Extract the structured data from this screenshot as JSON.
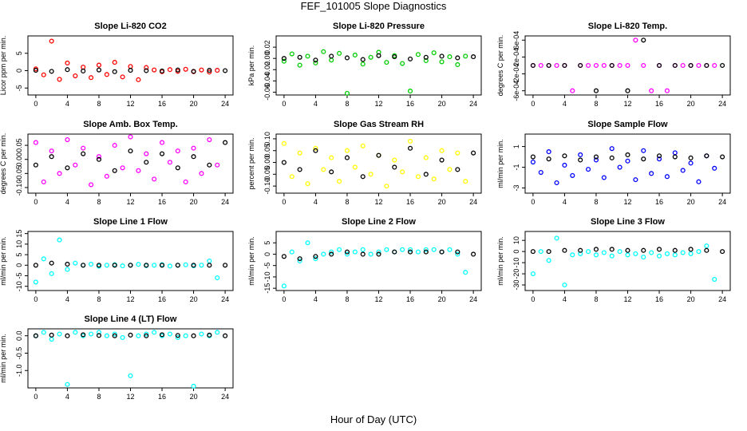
{
  "title": "FEF_101005  Slope Diagnostics",
  "xlabel": "Hour of Day (UTC)",
  "chart_data": [
    {
      "type": "scatter",
      "title": "Slope Li-820 CO2",
      "ylabel": "Licor ppm per min.",
      "xlim": [
        -1,
        25
      ],
      "xticks": [
        0,
        4,
        8,
        12,
        16,
        20,
        24
      ],
      "ylim": [
        -7,
        10
      ],
      "yticks": [
        -5,
        0,
        5
      ],
      "series": [
        {
          "color": "#ff0000",
          "x": [
            0,
            1,
            2,
            3,
            4,
            5,
            6,
            7,
            8,
            9,
            10,
            11,
            12,
            13,
            14,
            15,
            16,
            17,
            18,
            19,
            20,
            21,
            22,
            23
          ],
          "values": [
            0.5,
            -1.2,
            8.5,
            -2.5,
            2.2,
            -1.5,
            1.0,
            -2.0,
            1.6,
            -1.1,
            2.4,
            -1.8,
            1.2,
            -2.6,
            0.9,
            0.2,
            -0.3,
            0.3,
            -0.2,
            0.4,
            -0.3,
            0.2,
            -0.4,
            0.1
          ]
        },
        {
          "color": "#000000",
          "x": [
            0,
            2,
            4,
            6,
            8,
            10,
            12,
            14,
            16,
            18,
            20,
            22,
            24
          ],
          "values": [
            0.1,
            -0.2,
            0.3,
            -0.1,
            0.2,
            -0.3,
            0.1,
            0,
            -0.1,
            0.2,
            -0.2,
            0.1,
            0
          ]
        }
      ]
    },
    {
      "type": "scatter",
      "title": "Slope Li-820 Pressure",
      "ylabel": "kPa per min.",
      "xlim": [
        -1,
        25
      ],
      "xticks": [
        0,
        4,
        8,
        12,
        16,
        20,
        24
      ],
      "ylim": [
        -0.065,
        0.04
      ],
      "yticks": [
        -0.06,
        -0.04,
        -0.02,
        {
          "value": 0,
          "label": "0.00"
        },
        0.02
      ],
      "series": [
        {
          "color": "#00cd00",
          "x": [
            0,
            1,
            2,
            3,
            4,
            5,
            6,
            7,
            8,
            9,
            10,
            11,
            12,
            13,
            14,
            15,
            16,
            17,
            18,
            19,
            20,
            21,
            22,
            23
          ],
          "values": [
            -0.005,
            0.008,
            -0.012,
            0.004,
            -0.008,
            0.012,
            -0.003,
            0.009,
            -0.062,
            0.006,
            -0.01,
            0.002,
            0.011,
            -0.007,
            0.005,
            -0.009,
            -0.058,
            0.007,
            -0.004,
            0.01,
            -0.006,
            0.003,
            -0.011,
            0.004
          ]
        },
        {
          "color": "#000000",
          "x": [
            0,
            2,
            4,
            6,
            8,
            10,
            12,
            14,
            16,
            18,
            20,
            22,
            24
          ],
          "values": [
            0,
            0.002,
            -0.003,
            0.004,
            0.001,
            -0.002,
            0.005,
            0.003,
            -0.001,
            0.002,
            0.004,
            0.001,
            0.003
          ]
        }
      ]
    },
    {
      "type": "scatter",
      "title": "Slope Li-820 Temp.",
      "ylabel": "degrees C per min.",
      "xlim": [
        -1,
        25
      ],
      "xticks": [
        0,
        4,
        8,
        12,
        16,
        20,
        24
      ],
      "ylim": [
        -0.0007,
        0.0007
      ],
      "yticks": [
        {
          "value": -0.0006,
          "label": "-6e-04"
        },
        {
          "value": -0.0002,
          "label": "-2e-04"
        },
        {
          "value": 0.0002,
          "label": "2e-04"
        },
        {
          "value": 0.0006,
          "label": "6e-04"
        }
      ],
      "series": [
        {
          "color": "#ff00ff",
          "x": [
            0,
            1,
            2,
            3,
            4,
            5,
            6,
            7,
            8,
            9,
            10,
            11,
            12,
            13,
            14,
            15,
            16,
            17,
            18,
            19,
            20,
            21,
            22,
            23
          ],
          "values": [
            0,
            0,
            0,
            0,
            0,
            -0.0006,
            0,
            0,
            0,
            0,
            0,
            0,
            0,
            0.0006,
            0,
            -0.0006,
            0,
            -0.0006,
            0,
            0,
            0,
            0,
            0,
            0
          ]
        },
        {
          "color": "#000000",
          "x": [
            0,
            2,
            4,
            6,
            8,
            10,
            12,
            14,
            16,
            18,
            20,
            22,
            24
          ],
          "values": [
            0,
            0,
            0,
            0,
            -0.0006,
            0,
            -0.0006,
            0.0006,
            0,
            0,
            0,
            0,
            0
          ]
        }
      ]
    },
    {
      "type": "scatter",
      "title": "Slope Amb. Box Temp.",
      "ylabel": "degrees C per min.",
      "xlim": [
        -1,
        25
      ],
      "xticks": [
        0,
        4,
        8,
        12,
        16,
        20,
        24
      ],
      "ylim": [
        -0.12,
        0.09
      ],
      "yticks": [
        {
          "value": -0.1,
          "label": "-0.10"
        },
        -0.05,
        {
          "value": 0,
          "label": "0.00"
        },
        0.05
      ],
      "series": [
        {
          "color": "#ff00ff",
          "x": [
            0,
            1,
            2,
            3,
            4,
            5,
            6,
            7,
            8,
            9,
            10,
            11,
            12,
            13,
            14,
            15,
            16,
            17,
            18,
            19,
            20,
            21,
            22,
            23
          ],
          "values": [
            0.06,
            -0.08,
            0.03,
            -0.05,
            0.07,
            -0.02,
            0.04,
            -0.09,
            0.01,
            -0.06,
            0.05,
            -0.03,
            0.08,
            -0.04,
            0.02,
            -0.07,
            0.06,
            -0.01,
            0.03,
            -0.08,
            0.04,
            -0.05,
            0.07,
            -0.02
          ]
        },
        {
          "color": "#000000",
          "x": [
            0,
            2,
            4,
            6,
            8,
            10,
            12,
            14,
            16,
            18,
            20,
            22,
            24
          ],
          "values": [
            -0.02,
            0.01,
            -0.03,
            0.02,
            0,
            -0.04,
            0.03,
            -0.01,
            0.02,
            -0.03,
            0.01,
            -0.02,
            0.06
          ]
        }
      ]
    },
    {
      "type": "scatter",
      "title": "Slope Gas Stream RH",
      "ylabel": "percent per min.",
      "xlim": [
        -1,
        25
      ],
      "xticks": [
        0,
        4,
        8,
        12,
        16,
        20,
        24
      ],
      "ylim": [
        -0.13,
        0.12
      ],
      "yticks": [
        {
          "value": -0.1,
          "label": "-0.10"
        },
        -0.05,
        {
          "value": 0,
          "label": "0.00"
        },
        0.05,
        {
          "value": 0.1,
          "label": "0.10"
        }
      ],
      "series": [
        {
          "color": "#ffff00",
          "x": [
            0,
            1,
            2,
            3,
            4,
            5,
            6,
            7,
            8,
            9,
            10,
            11,
            12,
            13,
            14,
            15,
            16,
            17,
            18,
            19,
            20,
            21,
            22,
            23
          ],
          "values": [
            0.08,
            -0.06,
            0.04,
            -0.09,
            0.06,
            -0.03,
            0.02,
            -0.08,
            0.05,
            -0.02,
            0.07,
            -0.05,
            0.03,
            -0.1,
            0.01,
            -0.04,
            0.09,
            -0.06,
            0.02,
            -0.07,
            0.05,
            -0.03,
            0.04,
            -0.08
          ]
        },
        {
          "color": "#000000",
          "x": [
            0,
            2,
            4,
            6,
            8,
            10,
            12,
            14,
            16,
            18,
            20,
            22,
            24
          ],
          "values": [
            0,
            -0.03,
            0.05,
            -0.04,
            0.02,
            -0.06,
            0.03,
            -0.02,
            0.06,
            -0.05,
            0.01,
            -0.03,
            0.04
          ]
        }
      ]
    },
    {
      "type": "scatter",
      "title": "Slope Sample Flow",
      "ylabel": "ml/min per min.",
      "xlim": [
        -1,
        25
      ],
      "xticks": [
        0,
        4,
        8,
        12,
        16,
        20,
        24
      ],
      "ylim": [
        -3.5,
        2.2
      ],
      "yticks": [
        -3,
        -1,
        1
      ],
      "series": [
        {
          "color": "#0000ff",
          "x": [
            0,
            1,
            2,
            3,
            4,
            5,
            6,
            7,
            8,
            9,
            10,
            11,
            12,
            13,
            14,
            15,
            16,
            17,
            18,
            19,
            20,
            21,
            22,
            23
          ],
          "values": [
            -0.5,
            -1.5,
            0.5,
            -2.5,
            -0.8,
            -1.8,
            0.2,
            -1.2,
            -0.3,
            -2,
            0.8,
            -1,
            -0.4,
            -2.2,
            0.6,
            -1.6,
            -0.2,
            -1.9,
            0.4,
            -1.3,
            -0.6,
            -2.4,
            0.1,
            -1.1
          ]
        },
        {
          "color": "#000000",
          "x": [
            0,
            2,
            4,
            6,
            8,
            10,
            12,
            14,
            16,
            18,
            20,
            22,
            24
          ],
          "values": [
            0,
            -0.2,
            0.1,
            -0.3,
            0,
            -0.1,
            0.2,
            -0.2,
            0.1,
            0,
            -0.1,
            0.1,
            0
          ]
        }
      ]
    },
    {
      "type": "scatter",
      "title": "Slope Line 1 Flow",
      "ylabel": "ml/min per min.",
      "xlim": [
        -1,
        25
      ],
      "xticks": [
        0,
        4,
        8,
        12,
        16,
        20,
        24
      ],
      "ylim": [
        -12,
        16
      ],
      "yticks": [
        -10,
        -5,
        0,
        5,
        10,
        15
      ],
      "series": [
        {
          "color": "#00ffff",
          "x": [
            0,
            1,
            2,
            3,
            4,
            5,
            6,
            7,
            8,
            9,
            10,
            11,
            12,
            13,
            14,
            15,
            16,
            17,
            18,
            19,
            20,
            21,
            22,
            23
          ],
          "values": [
            -8,
            3,
            -4,
            12,
            -2,
            1,
            0,
            0.5,
            -0.5,
            0,
            0.3,
            -0.3,
            0,
            0.4,
            -0.2,
            0,
            0.3,
            -0.4,
            0,
            0.2,
            -0.3,
            0,
            2,
            -6
          ]
        },
        {
          "color": "#000000",
          "x": [
            0,
            2,
            4,
            6,
            8,
            10,
            12,
            14,
            16,
            18,
            20,
            22,
            24
          ],
          "values": [
            0,
            1,
            0.5,
            0,
            0,
            0,
            0,
            0,
            0,
            0,
            0,
            0,
            0
          ]
        }
      ]
    },
    {
      "type": "scatter",
      "title": "Slope Line 2 Flow",
      "ylabel": "ml/min per min.",
      "xlim": [
        -1,
        25
      ],
      "xticks": [
        0,
        4,
        8,
        12,
        16,
        20,
        24
      ],
      "ylim": [
        -16,
        10
      ],
      "yticks": [
        -15,
        -10,
        -5,
        0,
        5
      ],
      "series": [
        {
          "color": "#00ffff",
          "x": [
            0,
            1,
            2,
            3,
            4,
            5,
            6,
            7,
            8,
            9,
            10,
            11,
            12,
            13,
            14,
            15,
            16,
            17,
            18,
            19,
            20,
            21,
            22,
            23
          ],
          "values": [
            -14,
            1,
            -3,
            5,
            -2,
            0,
            1,
            2,
            0,
            1,
            2,
            0,
            1,
            2,
            1,
            2,
            2,
            1,
            2,
            2,
            1,
            2,
            0,
            -8
          ]
        },
        {
          "color": "#000000",
          "x": [
            0,
            2,
            4,
            6,
            8,
            10,
            12,
            14,
            16,
            18,
            20,
            22,
            24
          ],
          "values": [
            -1,
            -2,
            -1,
            0,
            1,
            0,
            0,
            1,
            1,
            1,
            1,
            1,
            0
          ]
        }
      ]
    },
    {
      "type": "scatter",
      "title": "Slope Line 3 Flow",
      "ylabel": "ml/min per min.",
      "xlim": [
        -1,
        25
      ],
      "xticks": [
        0,
        4,
        8,
        12,
        16,
        20,
        24
      ],
      "ylim": [
        -35,
        18
      ],
      "yticks": [
        -30,
        -20,
        -10,
        0,
        10
      ],
      "series": [
        {
          "color": "#00ffff",
          "x": [
            0,
            1,
            2,
            3,
            4,
            5,
            6,
            7,
            8,
            9,
            10,
            11,
            12,
            13,
            14,
            15,
            16,
            17,
            18,
            19,
            20,
            21,
            22,
            23
          ],
          "values": [
            -20,
            0,
            -8,
            12,
            -30,
            -3,
            -2,
            0,
            -3,
            -1,
            -4,
            0,
            -3,
            -2,
            -5,
            -1,
            -4,
            -2,
            -3,
            -1,
            -2,
            0,
            5,
            -25
          ]
        },
        {
          "color": "#000000",
          "x": [
            0,
            2,
            4,
            6,
            8,
            10,
            12,
            14,
            16,
            18,
            20,
            22,
            24
          ],
          "values": [
            0,
            0,
            1,
            1,
            2,
            2,
            1,
            1,
            2,
            1,
            2,
            1,
            0
          ]
        }
      ]
    },
    {
      "type": "scatter",
      "title": "Slope Line 4 (LT) Flow",
      "ylabel": "ml/min per min.",
      "xlim": [
        -1,
        25
      ],
      "xticks": [
        0,
        4,
        8,
        12,
        16,
        20,
        24
      ],
      "ylim": [
        -1.5,
        0.2
      ],
      "yticks": [
        {
          "value": -1,
          "label": "-1.0"
        },
        -0.5,
        {
          "value": 0,
          "label": "0.0"
        }
      ],
      "series": [
        {
          "color": "#00ffff",
          "x": [
            0,
            1,
            2,
            3,
            4,
            5,
            6,
            7,
            8,
            9,
            10,
            11,
            12,
            13,
            14,
            15,
            16,
            17,
            18,
            19,
            20,
            21,
            22,
            23
          ],
          "values": [
            0,
            0.1,
            -0.1,
            0.05,
            -1.4,
            0.1,
            0,
            0.05,
            0.1,
            0,
            0.05,
            -0.05,
            -1.15,
            0,
            0.05,
            0.1,
            0,
            0.05,
            -0.05,
            0,
            -1.45,
            0.05,
            0,
            0.1
          ]
        },
        {
          "color": "#000000",
          "x": [
            0,
            2,
            4,
            6,
            8,
            10,
            12,
            14,
            16,
            18,
            20,
            22,
            24
          ],
          "values": [
            0,
            0.02,
            0,
            0.03,
            0.01,
            0,
            0.02,
            0,
            0.03,
            0.01,
            0,
            0.02,
            0
          ]
        }
      ]
    }
  ]
}
